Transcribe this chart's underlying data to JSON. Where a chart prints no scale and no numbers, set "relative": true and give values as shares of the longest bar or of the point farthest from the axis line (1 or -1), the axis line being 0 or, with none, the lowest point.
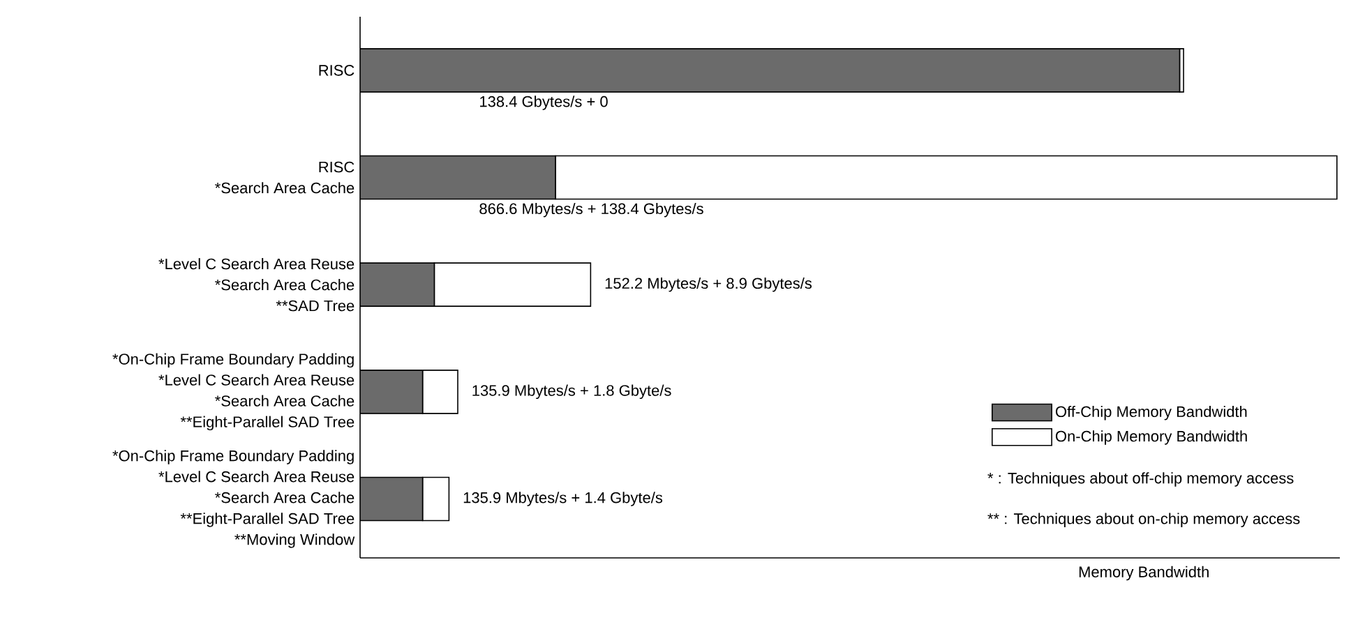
{
  "chart_data": {
    "type": "bar",
    "orientation": "horizontal",
    "stacked": true,
    "relative": true,
    "xlabel": "Memory Bandwidth",
    "categories": [
      "RISC",
      "RISC\n*Search Area Cache",
      "*Level C Search Area Reuse\n*Search Area Cache\n**SAD Tree",
      "*On-Chip Frame Boundary Padding\n*Level C Search Area Reuse\n*Search Area Cache\n**Eight-Parallel SAD Tree",
      "*On-Chip Frame Boundary Padding\n*Level C Search Area Reuse\n*Search Area Cache\n**Eight-Parallel SAD Tree\n**Moving Window"
    ],
    "series": [
      {
        "name": "Off-Chip Memory Bandwidth",
        "color": "#6b6b6b",
        "values": [
          0.839,
          0.2,
          0.076,
          0.064,
          0.064
        ]
      },
      {
        "name": "On-Chip Memory Bandwidth",
        "color": "#ffffff",
        "values": [
          0.004,
          0.8,
          0.16,
          0.036,
          0.027
        ]
      }
    ],
    "totals": [
      "138.4 Gbytes/s + 0",
      "866.6 Mbytes/s + 138.4 Gbytes/s",
      "152.2 Mbytes/s  + 8.9 Gbytes/s",
      "135.9 Mbytes/s  + 1.8 Gbyte/s",
      "135.9 Mbytes/s  + 1.4 Gbyte/s"
    ],
    "legend": "bottom right",
    "annotations": [
      "* : Techniques about off-chip memory access",
      "** : Techniques about on-chip memory access"
    ]
  }
}
